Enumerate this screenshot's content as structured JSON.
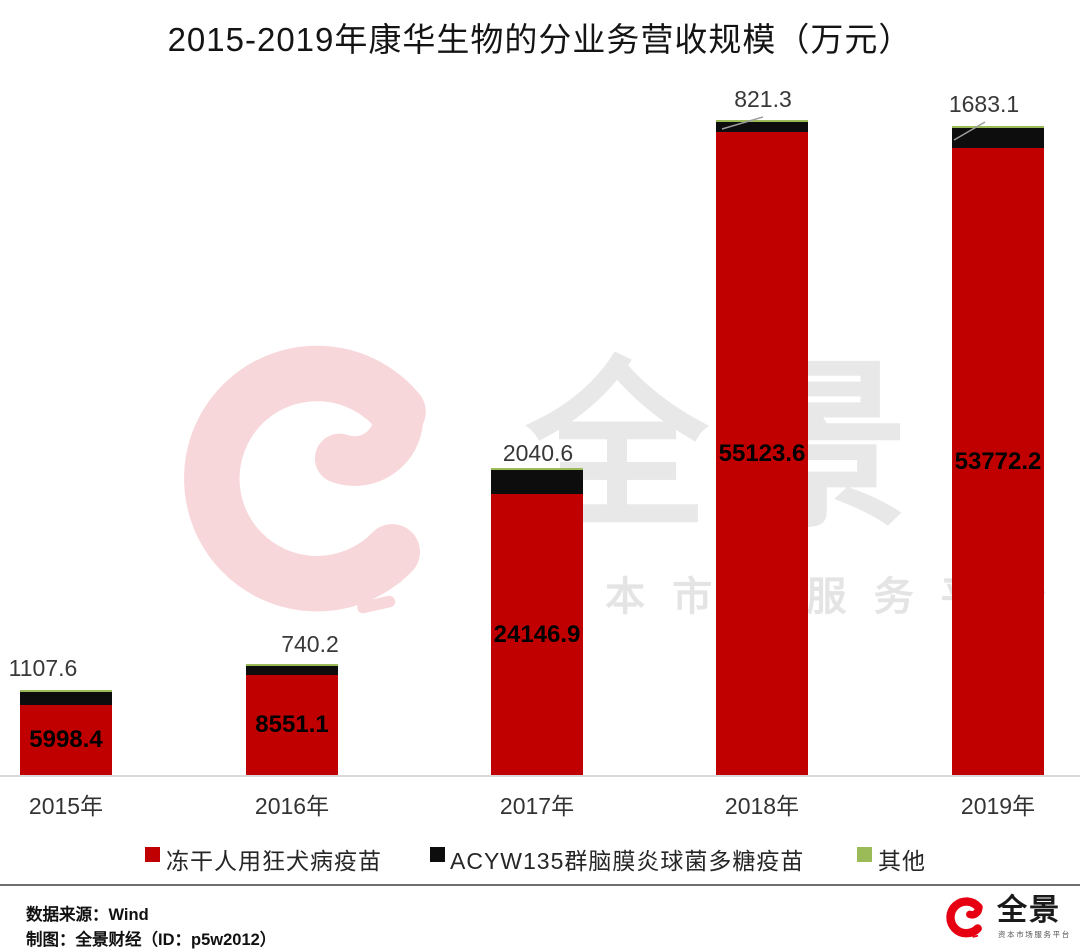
{
  "title": "2015-2019年康华生物的分业务营收规模（万元）",
  "chart_data": {
    "type": "bar",
    "stacked": true,
    "unit": "万元",
    "categories": [
      "2015年",
      "2016年",
      "2017年",
      "2018年",
      "2019年"
    ],
    "series": [
      {
        "name": "冻干人用狂犬病疫苗",
        "color": "#c00000",
        "values": [
          5998.4,
          8551.1,
          24146.9,
          55123.6,
          53772.2
        ],
        "label_position": "inside"
      },
      {
        "name": "ACYW135群脑膜炎球菌多糖疫苗",
        "color": "#0d0d0d",
        "values": [
          1107.6,
          740.2,
          2040.6,
          821.3,
          1683.1
        ],
        "label_position": "outside"
      },
      {
        "name": "其他",
        "color": "#9bbb59",
        "values": [
          null,
          null,
          null,
          null,
          null
        ],
        "label_position": "none"
      }
    ],
    "ylim": [
      0,
      56500
    ],
    "gridlines": false,
    "legend_position": "bottom",
    "value_axis_hidden": true
  },
  "watermark": {
    "brand": "全景",
    "tagline": "资 本 市 场 服 务 平 台"
  },
  "footer": {
    "source": "数据来源：Wind",
    "credit": "制图：全景财经（ID：p5w2012）",
    "brand": "全景",
    "brand_tagline": "资本市场服务平台"
  },
  "colors": {
    "bar_red": "#c00000",
    "bar_black": "#0d0d0d",
    "bar_green": "#9bbb59",
    "logo_red": "#e60012",
    "watermark_pink": "#f8d7db",
    "watermark_gray": "#e8e8e8",
    "axis_line": "#d9d9d9",
    "leader_line": "#9d9d9d"
  }
}
